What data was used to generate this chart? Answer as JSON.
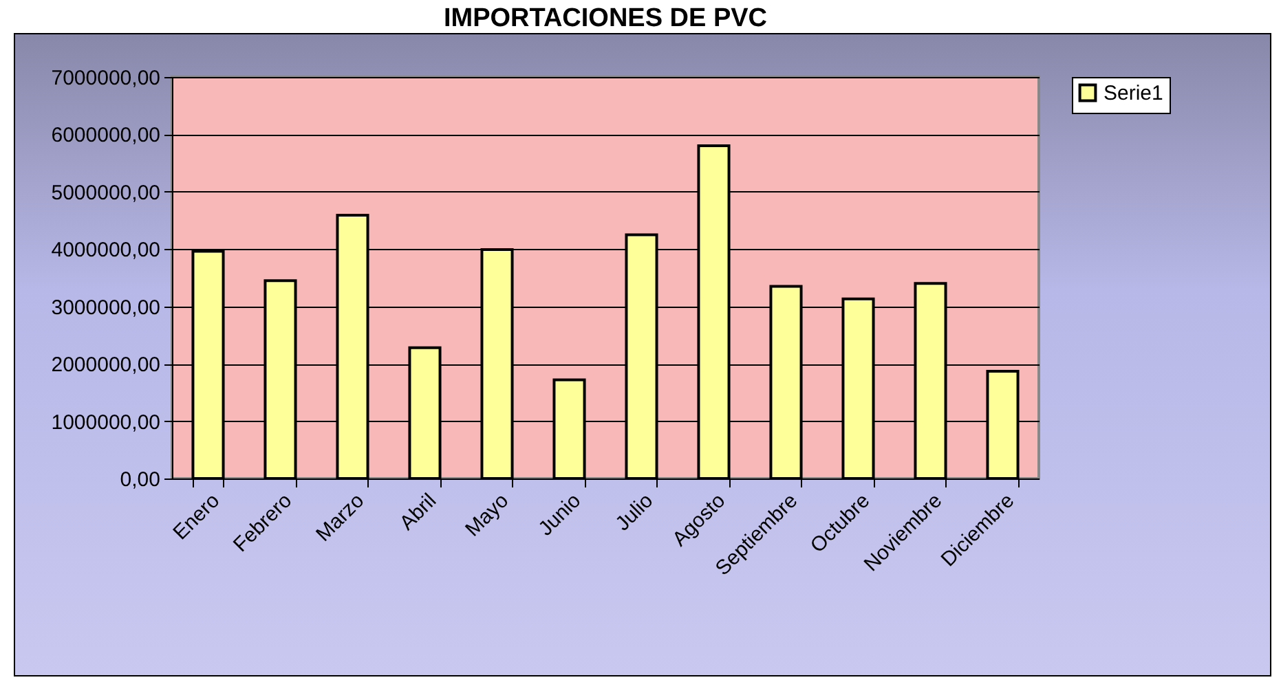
{
  "chart_data": {
    "type": "bar",
    "title": "IMPORTACIONES DE PVC",
    "categories": [
      "Enero",
      "Febrero",
      "Marzo",
      "Abril",
      "Mayo",
      "Junio",
      "Julio",
      "Agosto",
      "Septiembre",
      "Octubre",
      "Noviembre",
      "Diciembre"
    ],
    "series": [
      {
        "name": "Serie1",
        "color": "#ffff99",
        "values": [
          3960000,
          3450000,
          4590000,
          2280000,
          3990000,
          1720000,
          4250000,
          5800000,
          3350000,
          3130000,
          3400000,
          1870000
        ]
      }
    ],
    "ylim": [
      0,
      7000000
    ],
    "yticks": [
      {
        "value": 0,
        "label": "0,00"
      },
      {
        "value": 1000000,
        "label": "1000000,00"
      },
      {
        "value": 2000000,
        "label": "2000000,00"
      },
      {
        "value": 3000000,
        "label": "3000000,00"
      },
      {
        "value": 4000000,
        "label": "4000000,00"
      },
      {
        "value": 5000000,
        "label": "5000000,00"
      },
      {
        "value": 6000000,
        "label": "6000000,00"
      },
      {
        "value": 7000000,
        "label": "7000000,00"
      }
    ],
    "grid": "y",
    "legend": "right"
  }
}
